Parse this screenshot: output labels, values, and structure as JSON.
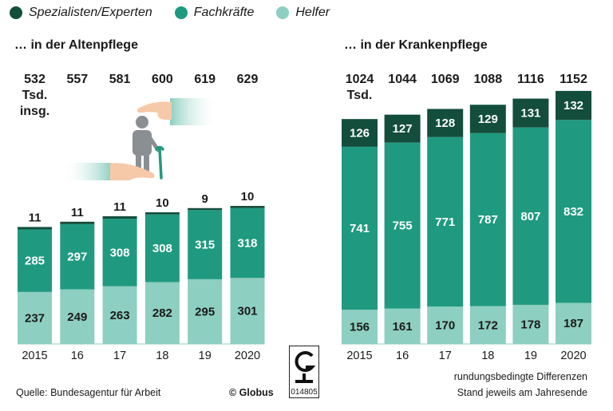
{
  "legend": [
    {
      "label": "Spezialisten/Experten",
      "color": "#134d3c"
    },
    {
      "label": "Fachkräfte",
      "color": "#1f9a80"
    },
    {
      "label": "Helfer",
      "color": "#8dcfc0"
    }
  ],
  "colors": {
    "spezialisten": "#134d3c",
    "fachkraefte": "#1f9a80",
    "helfer": "#8dcfc0"
  },
  "footer": {
    "source": "Quelle: Bundesagentur für Arbeit",
    "copyright": "© Globus",
    "code": "014805",
    "note1": "rundungsbedingte Differenzen",
    "note2": "Stand jeweils am Jahresende"
  },
  "illustration": {
    "icon": "caring-hands-elderly-person-icon"
  },
  "chart_data": [
    {
      "type": "bar",
      "stacked": true,
      "title": "… in der Altenpflege",
      "total_unit_label": [
        "Tsd.",
        "insg."
      ],
      "categories": [
        "2015",
        "16",
        "17",
        "18",
        "19",
        "2020"
      ],
      "totals": [
        532,
        557,
        581,
        600,
        619,
        629
      ],
      "series": [
        {
          "name": "Helfer",
          "values": [
            237,
            249,
            263,
            282,
            295,
            301
          ]
        },
        {
          "name": "Fachkräfte",
          "values": [
            285,
            297,
            308,
            308,
            315,
            318
          ]
        },
        {
          "name": "Spezialisten/Experten",
          "values": [
            11,
            11,
            11,
            10,
            9,
            10
          ]
        }
      ]
    },
    {
      "type": "bar",
      "stacked": true,
      "title": "… in der Krankenpflege",
      "total_unit_label": [
        "Tsd."
      ],
      "categories": [
        "2015",
        "16",
        "17",
        "18",
        "19",
        "2020"
      ],
      "totals": [
        1024,
        1044,
        1069,
        1088,
        1116,
        1152
      ],
      "series": [
        {
          "name": "Helfer",
          "values": [
            156,
            161,
            170,
            172,
            178,
            187
          ]
        },
        {
          "name": "Fachkräfte",
          "values": [
            741,
            755,
            771,
            787,
            807,
            832
          ]
        },
        {
          "name": "Spezialisten/Experten",
          "values": [
            126,
            127,
            128,
            129,
            131,
            132
          ]
        }
      ]
    }
  ]
}
